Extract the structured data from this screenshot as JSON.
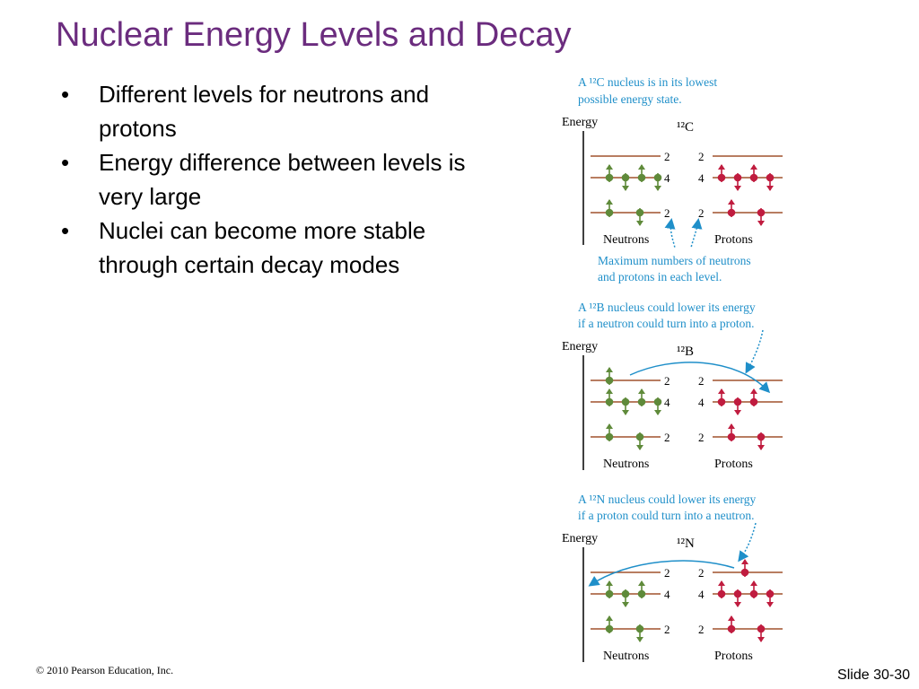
{
  "title": "Nuclear Energy Levels and Decay",
  "bullets": [
    "Different levels for neutrons and protons",
    "Energy difference between levels is very large",
    "Nuclei can become more stable through certain decay modes"
  ],
  "bullet_symbol": "•",
  "figure": {
    "energy_label": "Energy",
    "neutrons_label": "Neutrons",
    "protons_label": "Protons",
    "level_capacities": [
      "2",
      "4",
      "2"
    ],
    "panel1": {
      "caption_line1": "A ¹²C nucleus is in its lowest",
      "caption_line2": "possible energy state.",
      "nucleus": "¹²C",
      "note_line1": "Maximum numbers of neutrons",
      "note_line2": "and protons in each level."
    },
    "panel2": {
      "caption_line1": "A ¹²B nucleus could lower its energy",
      "caption_line2": "if a neutron could turn into a proton.",
      "nucleus": "¹²B"
    },
    "panel3": {
      "caption_line1": "A ¹²N nucleus could lower its energy",
      "caption_line2": "if a proton could turn into a neutron.",
      "nucleus": "¹²N"
    },
    "colors": {
      "caption": "#1f8fc9",
      "neutron": "#5f8a3a",
      "proton": "#c01c3f",
      "level_line": "#a0522d",
      "axis": "#000000"
    }
  },
  "footer": {
    "copyright": "© 2010 Pearson Education, Inc.",
    "slide_number": "Slide 30-30"
  }
}
